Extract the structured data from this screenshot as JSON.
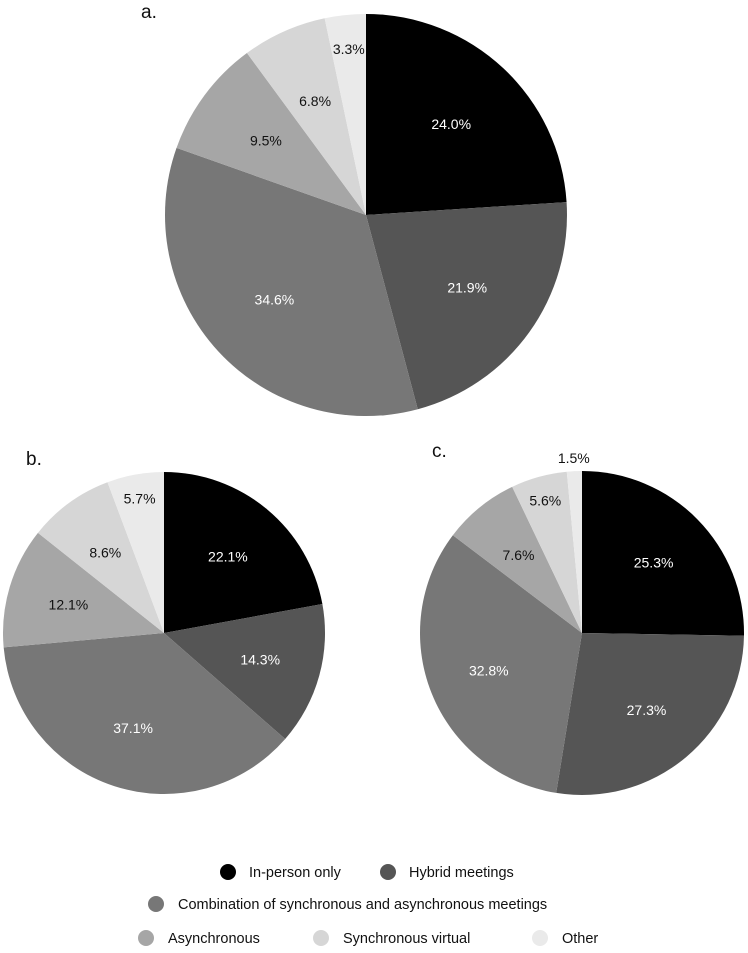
{
  "chart_data": [
    {
      "type": "pie",
      "panel_label": "a.",
      "categories": [
        "In-person only",
        "Hybrid meetings",
        "Combination of synchronous and asynchronous meetings",
        "Asynchronous",
        "Synchronous virtual",
        "Other"
      ],
      "values": [
        24.0,
        21.9,
        34.6,
        9.5,
        6.8,
        3.3
      ],
      "labels": [
        "24.0%",
        "21.9%",
        "34.6%",
        "9.5%",
        "6.8%",
        "3.3%"
      ],
      "start_angle": "12 o'clock",
      "direction": "clockwise"
    },
    {
      "type": "pie",
      "panel_label": "b.",
      "categories": [
        "In-person only",
        "Hybrid meetings",
        "Combination of synchronous and asynchronous meetings",
        "Asynchronous",
        "Synchronous virtual",
        "Other"
      ],
      "values": [
        22.1,
        14.3,
        37.1,
        12.1,
        8.6,
        5.7
      ],
      "labels": [
        "22.1%",
        "14.3%",
        "37.1%",
        "12.1%",
        "8.6%",
        "5.7%"
      ],
      "start_angle": "12 o'clock",
      "direction": "clockwise"
    },
    {
      "type": "pie",
      "panel_label": "c.",
      "categories": [
        "In-person only",
        "Hybrid meetings",
        "Combination of synchronous and asynchronous meetings",
        "Asynchronous",
        "Synchronous virtual",
        "Other"
      ],
      "values": [
        25.3,
        27.3,
        32.8,
        7.6,
        5.6,
        1.5
      ],
      "labels": [
        "25.3%",
        "27.3%",
        "32.8%",
        "7.6%",
        "5.6%",
        "1.5%"
      ],
      "start_angle": "12 o'clock",
      "direction": "clockwise"
    }
  ],
  "colors": {
    "In-person only": "#000000",
    "Hybrid meetings": "#555555",
    "Combination of synchronous and asynchronous meetings": "#777777",
    "Asynchronous": "#a6a6a6",
    "Synchronous virtual": "#d6d6d6",
    "Other": "#eaeaea"
  },
  "label_colors": {
    "In-person only": "#ffffff",
    "Hybrid meetings": "#ffffff",
    "Combination of synchronous and asynchronous meetings": "#ffffff",
    "Asynchronous": "#111111",
    "Synchronous virtual": "#111111",
    "Other": "#111111"
  },
  "legend": {
    "placement": "bottom",
    "items": [
      "In-person only",
      "Hybrid meetings",
      "Combination of synchronous and asynchronous meetings",
      "Asynchronous",
      "Synchronous virtual",
      "Other"
    ]
  }
}
